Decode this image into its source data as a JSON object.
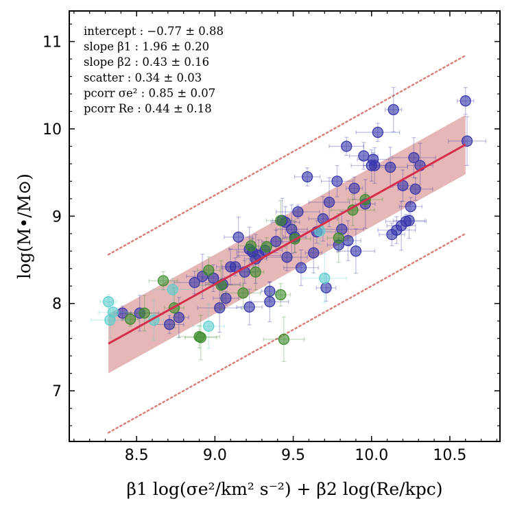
{
  "chart_data": {
    "type": "scatter",
    "xlabel": "β1 log(σe²/km² s⁻²) + β2 log(Re/kpc)",
    "ylabel": "log(M•/M⊙)",
    "xlim": [
      8.07,
      10.82
    ],
    "ylim": [
      6.42,
      11.35
    ],
    "xticks": [
      "8.5",
      "9.0",
      "9.5",
      "10.0",
      "10.5"
    ],
    "xtick_values": [
      8.5,
      9.0,
      9.5,
      10.0,
      10.5
    ],
    "yticks": [
      "7",
      "8",
      "9",
      "10",
      "11"
    ],
    "ytick_values": [
      7,
      8,
      9,
      10,
      11
    ],
    "grid": false,
    "stats": [
      {
        "label": "intercept :",
        "value": "−0.77 ± 0.88"
      },
      {
        "label": "slope β1 :",
        "value": "1.96 ± 0.20"
      },
      {
        "label": "slope β2 :",
        "value": "0.43 ± 0.16"
      },
      {
        "label": "scatter :",
        "value": "0.34 ± 0.03"
      },
      {
        "label": "pcorr σe² :",
        "value": "0.85 ± 0.07"
      },
      {
        "label": "pcorr Re :",
        "value": "0.44 ± 0.18"
      }
    ],
    "fit": {
      "x": [
        8.32,
        10.6
      ],
      "y": [
        7.54,
        9.82
      ],
      "band_halfwidth": 0.34,
      "outer_offset": 1.02,
      "line_color": "#d62d4c",
      "band_color": "#e2aaaa",
      "dotted_color": "#d9807a"
    },
    "series_colors": {
      "blue": "#3333aa",
      "green": "#3a8a2a",
      "cyan": "#5ccfcf"
    },
    "series": [
      {
        "color_key": "blue",
        "points": [
          [
            8.41,
            7.89
          ],
          [
            8.52,
            7.89
          ],
          [
            8.71,
            7.76
          ],
          [
            8.77,
            7.84
          ],
          [
            8.87,
            8.24
          ],
          [
            8.92,
            8.31
          ],
          [
            8.99,
            8.29
          ],
          [
            9.03,
            7.95
          ],
          [
            9.05,
            8.22
          ],
          [
            9.07,
            8.06
          ],
          [
            9.1,
            8.42
          ],
          [
            9.13,
            8.42
          ],
          [
            9.15,
            8.76
          ],
          [
            9.19,
            8.36
          ],
          [
            9.22,
            8.62
          ],
          [
            9.24,
            8.59
          ],
          [
            9.26,
            8.51
          ],
          [
            9.28,
            8.55
          ],
          [
            9.32,
            8.61
          ],
          [
            9.22,
            7.96
          ],
          [
            9.35,
            8.14
          ],
          [
            9.35,
            8.02
          ],
          [
            9.39,
            8.71
          ],
          [
            9.43,
            8.95
          ],
          [
            9.46,
            8.53
          ],
          [
            9.49,
            8.85
          ],
          [
            9.51,
            8.76
          ],
          [
            9.53,
            9.05
          ],
          [
            9.55,
            8.41
          ],
          [
            9.59,
            9.45
          ],
          [
            9.63,
            8.58
          ],
          [
            9.65,
            8.82
          ],
          [
            9.69,
            8.97
          ],
          [
            9.71,
            8.18
          ],
          [
            9.73,
            9.16
          ],
          [
            9.78,
            9.4
          ],
          [
            9.79,
            8.67
          ],
          [
            9.81,
            8.85
          ],
          [
            9.84,
            9.8
          ],
          [
            9.85,
            8.72
          ],
          [
            9.89,
            9.32
          ],
          [
            9.9,
            8.6
          ],
          [
            9.95,
            9.69
          ],
          [
            9.96,
            9.14
          ],
          [
            10.0,
            9.58
          ],
          [
            10.01,
            9.65
          ],
          [
            10.02,
            9.58
          ],
          [
            10.04,
            9.96
          ],
          [
            10.12,
            9.56
          ],
          [
            10.13,
            8.79
          ],
          [
            10.14,
            10.22
          ],
          [
            10.16,
            8.84
          ],
          [
            10.19,
            8.89
          ],
          [
            10.2,
            9.35
          ],
          [
            10.22,
            8.94
          ],
          [
            10.24,
            8.95
          ],
          [
            10.25,
            9.11
          ],
          [
            10.27,
            9.67
          ],
          [
            10.28,
            9.31
          ],
          [
            10.31,
            9.58
          ],
          [
            10.6,
            10.32
          ],
          [
            10.61,
            9.86
          ],
          [
            9.45,
            8.93
          ]
        ]
      },
      {
        "color_key": "green",
        "points": [
          [
            8.46,
            7.82
          ],
          [
            8.55,
            7.89
          ],
          [
            8.67,
            8.26
          ],
          [
            8.74,
            7.95
          ],
          [
            8.9,
            7.62
          ],
          [
            8.91,
            7.61
          ],
          [
            8.96,
            8.38
          ],
          [
            9.04,
            8.21
          ],
          [
            9.18,
            8.12
          ],
          [
            9.23,
            8.66
          ],
          [
            9.26,
            8.36
          ],
          [
            9.33,
            8.65
          ],
          [
            9.42,
            8.95
          ],
          [
            9.42,
            8.1
          ],
          [
            9.44,
            7.59
          ],
          [
            9.51,
            8.74
          ],
          [
            9.79,
            8.75
          ],
          [
            9.88,
            9.07
          ],
          [
            9.96,
            9.19
          ]
        ]
      },
      {
        "color_key": "cyan",
        "points": [
          [
            8.32,
            8.02
          ],
          [
            8.33,
            7.81
          ],
          [
            8.35,
            7.9
          ],
          [
            8.61,
            7.81
          ],
          [
            8.73,
            8.16
          ],
          [
            8.96,
            7.74
          ],
          [
            9.67,
            8.83
          ],
          [
            9.7,
            8.29
          ]
        ]
      }
    ]
  }
}
